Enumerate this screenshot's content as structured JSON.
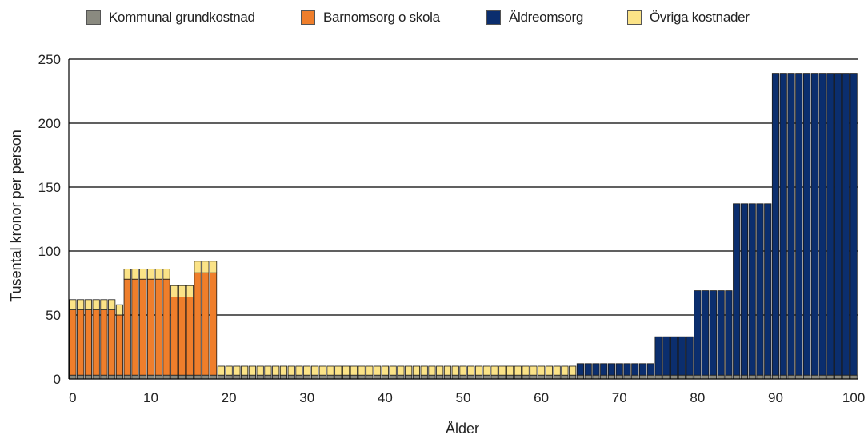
{
  "chart_data": {
    "type": "bar",
    "stacked": true,
    "xlabel": "Ålder",
    "ylabel": "Tusental kronor per person",
    "ylim": [
      0,
      250
    ],
    "xlim": [
      0,
      100
    ],
    "yticks": [
      0,
      50,
      100,
      150,
      200,
      250
    ],
    "xticks": [
      0,
      10,
      20,
      30,
      40,
      50,
      60,
      70,
      80,
      90,
      100
    ],
    "legend_position": "top",
    "grid": "horizontal",
    "colors": {
      "Kommunal grundkostnad": "#8a8a80",
      "Barnomsorg o skola": "#ef7e2b",
      "Äldreomsorg": "#0b2e6e",
      "Övriga kostnader": "#fbe387"
    },
    "series_names": [
      "Kommunal grundkostnad",
      "Barnomsorg o skola",
      "Äldreomsorg",
      "Övriga kostnader"
    ],
    "age_groups": [
      {
        "from": 0,
        "to": 5,
        "values": {
          "Kommunal grundkostnad": 3,
          "Barnomsorg o skola": 51,
          "Äldreomsorg": 0,
          "Övriga kostnader": 8
        }
      },
      {
        "from": 6,
        "to": 6,
        "values": {
          "Kommunal grundkostnad": 3,
          "Barnomsorg o skola": 47,
          "Äldreomsorg": 0,
          "Övriga kostnader": 8
        }
      },
      {
        "from": 7,
        "to": 12,
        "values": {
          "Kommunal grundkostnad": 3,
          "Barnomsorg o skola": 75,
          "Äldreomsorg": 0,
          "Övriga kostnader": 8
        }
      },
      {
        "from": 13,
        "to": 15,
        "values": {
          "Kommunal grundkostnad": 3,
          "Barnomsorg o skola": 61,
          "Äldreomsorg": 0,
          "Övriga kostnader": 9
        }
      },
      {
        "from": 16,
        "to": 18,
        "values": {
          "Kommunal grundkostnad": 3,
          "Barnomsorg o skola": 80,
          "Äldreomsorg": 0,
          "Övriga kostnader": 9
        }
      },
      {
        "from": 19,
        "to": 64,
        "values": {
          "Kommunal grundkostnad": 3,
          "Barnomsorg o skola": 0,
          "Äldreomsorg": 0,
          "Övriga kostnader": 7
        }
      },
      {
        "from": 65,
        "to": 74,
        "values": {
          "Kommunal grundkostnad": 3,
          "Barnomsorg o skola": 0,
          "Äldreomsorg": 9,
          "Övriga kostnader": 0
        }
      },
      {
        "from": 75,
        "to": 79,
        "values": {
          "Kommunal grundkostnad": 3,
          "Barnomsorg o skola": 0,
          "Äldreomsorg": 30,
          "Övriga kostnader": 0
        }
      },
      {
        "from": 80,
        "to": 84,
        "values": {
          "Kommunal grundkostnad": 3,
          "Barnomsorg o skola": 0,
          "Äldreomsorg": 66,
          "Övriga kostnader": 0
        }
      },
      {
        "from": 85,
        "to": 89,
        "values": {
          "Kommunal grundkostnad": 3,
          "Barnomsorg o skola": 0,
          "Äldreomsorg": 134,
          "Övriga kostnader": 0
        }
      },
      {
        "from": 90,
        "to": 100,
        "values": {
          "Kommunal grundkostnad": 3,
          "Barnomsorg o skola": 0,
          "Äldreomsorg": 236,
          "Övriga kostnader": 0
        }
      }
    ]
  }
}
